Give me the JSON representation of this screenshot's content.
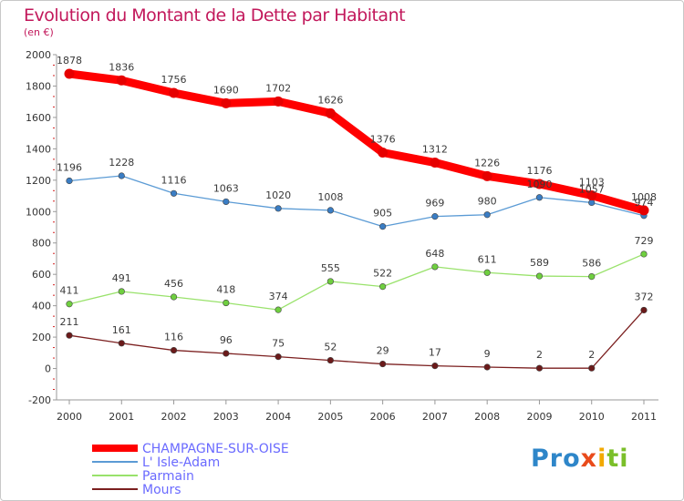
{
  "chart_data": {
    "type": "line",
    "title": "Evolution du Montant de la Dette par Habitant",
    "subtitle": "(en €)",
    "x": [
      "2000",
      "2001",
      "2002",
      "2003",
      "2004",
      "2005",
      "2006",
      "2007",
      "2008",
      "2009",
      "2010",
      "2011"
    ],
    "ylim": [
      -200,
      2000
    ],
    "yticks": [
      -200,
      0,
      200,
      400,
      600,
      800,
      1000,
      1200,
      1400,
      1600,
      1800,
      2000
    ],
    "grid": false,
    "legend_position": "bottom-left",
    "series": [
      {
        "name": "CHAMPAGNE-SUR-OISE",
        "color": "#ff0000",
        "marker": "#e60000",
        "labels": [
          "1878",
          "1836",
          "1756",
          "1690",
          "1702",
          "1626",
          "1376",
          "1312",
          "1226",
          "1176",
          "1103",
          "1008"
        ],
        "values": [
          1878,
          1836,
          1756,
          1690,
          1702,
          1626,
          1376,
          1312,
          1226,
          1176,
          1103,
          1008
        ]
      },
      {
        "name": "L' Isle-Adam",
        "color": "#5b9bd5",
        "marker": "#3a7dc4",
        "labels": [
          "1196",
          "1228",
          "1116",
          "1063",
          "1020",
          "1008",
          "905",
          "969",
          "980",
          "1090",
          "1057",
          "974"
        ],
        "values": [
          1196,
          1228,
          1116,
          1063,
          1020,
          1008,
          905,
          969,
          980,
          1090,
          1057,
          974
        ]
      },
      {
        "name": "Parmain",
        "color": "#99e26b",
        "marker": "#6fcf3f",
        "labels": [
          "411",
          "491",
          "456",
          "418",
          "374",
          "555",
          "522",
          "648",
          "611",
          "589",
          "586",
          "729"
        ],
        "values": [
          411,
          491,
          456,
          418,
          374,
          555,
          522,
          648,
          611,
          589,
          586,
          729
        ]
      },
      {
        "name": "Mours",
        "color": "#7b1f1f",
        "marker": "#6b1a1a",
        "labels": [
          "211",
          "161",
          "116",
          "96",
          "75",
          "52",
          "29",
          "17",
          "9",
          "2",
          "2",
          "372"
        ],
        "values": [
          211,
          161,
          116,
          96,
          75,
          52,
          29,
          17,
          9,
          2,
          2,
          372
        ]
      }
    ]
  },
  "logo": {
    "text": "Proxiti"
  }
}
